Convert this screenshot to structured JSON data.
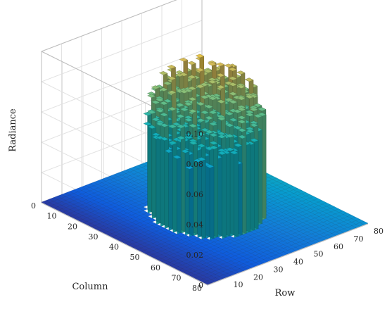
{
  "chart_data": {
    "type": "bar3d",
    "title": "",
    "xlabel": "Row",
    "ylabel": "Column",
    "zlabel": "Radiance",
    "x_ticks": [
      "10",
      "20",
      "30",
      "40",
      "50",
      "60",
      "70",
      "80"
    ],
    "y_ticks": [
      "0",
      "10",
      "20",
      "30",
      "40",
      "50",
      "60",
      "70",
      "80"
    ],
    "z_ticks": [
      "0",
      "0.02",
      "0.04",
      "0.06",
      "0.08",
      "0.10"
    ],
    "xlim": [
      0,
      80
    ],
    "ylim": [
      0,
      80
    ],
    "zlim": [
      0,
      0.1
    ],
    "grid_size": 80,
    "grid": true,
    "colormap": "parula",
    "surface": {
      "floor_value": 0.0,
      "cylinder_center": [
        40,
        40
      ],
      "cylinder_radius": 20,
      "inside_value_range": [
        0.045,
        0.09
      ],
      "peak_region": "high-row, high-column edge (near row 40-55, column 55-70)"
    },
    "colors": {
      "low": "#352a87",
      "mid": "#13b1b2",
      "high": "#f9fb0e"
    }
  }
}
